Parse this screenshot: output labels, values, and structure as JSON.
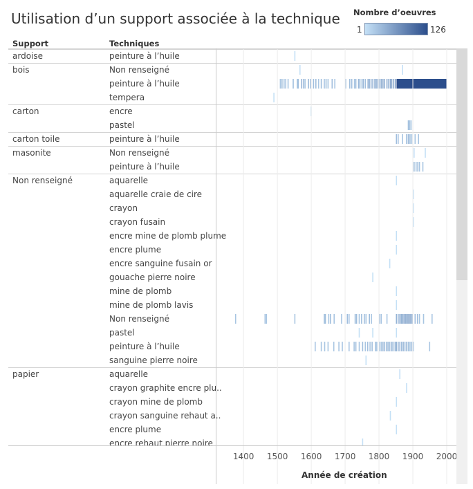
{
  "title": "Utilisation d’un support associée à la technique",
  "legend": {
    "title": "Nombre d’oeuvres",
    "min": "1",
    "max": "126",
    "color_low": "#c4e0f6",
    "color_high": "#2c4e8c"
  },
  "headers": {
    "support": "Support",
    "techniques": "Techniques"
  },
  "chart_data": {
    "type": "heatmap",
    "xlabel": "Année de création",
    "xlim": [
      1320,
      2010
    ],
    "xticks": [
      1400,
      1500,
      1600,
      1700,
      1800,
      1900,
      2000
    ],
    "grid": true,
    "groups": [
      {
        "support": "ardoise",
        "rows": [
          {
            "technique": "peinture à l’huile",
            "marks": [
              [
                1550,
                1
              ]
            ]
          }
        ]
      },
      {
        "support": "bois",
        "rows": [
          {
            "technique": "Non renseigné",
            "marks": [
              [
                1565,
                1
              ],
              [
                1868,
                1
              ]
            ]
          },
          {
            "technique": "peinture à l’huile",
            "marks": [
              [
                1507,
                2
              ],
              [
                1512,
                3
              ],
              [
                1518,
                2
              ],
              [
                1523,
                2
              ],
              [
                1530,
                2
              ],
              [
                1545,
                3
              ],
              [
                1557,
                2
              ],
              [
                1560,
                3
              ],
              [
                1570,
                4
              ],
              [
                1575,
                3
              ],
              [
                1580,
                2
              ],
              [
                1590,
                4
              ],
              [
                1596,
                3
              ],
              [
                1605,
                3
              ],
              [
                1612,
                3
              ],
              [
                1620,
                2
              ],
              [
                1628,
                3
              ],
              [
                1637,
                2
              ],
              [
                1642,
                3
              ],
              [
                1648,
                2
              ],
              [
                1660,
                3
              ],
              [
                1668,
                2
              ],
              [
                1700,
                2
              ],
              [
                1712,
                3
              ],
              [
                1718,
                3
              ],
              [
                1726,
                2
              ],
              [
                1730,
                3
              ],
              [
                1738,
                4
              ],
              [
                1742,
                3
              ],
              [
                1748,
                2
              ],
              [
                1752,
                4
              ],
              [
                1758,
                3
              ],
              [
                1766,
                5
              ],
              [
                1770,
                4
              ],
              [
                1775,
                6
              ],
              [
                1780,
                5
              ],
              [
                1786,
                4
              ],
              [
                1790,
                6
              ],
              [
                1795,
                5
              ],
              [
                1800,
                6
              ],
              [
                1805,
                7
              ],
              [
                1810,
                8
              ],
              [
                1815,
                6
              ],
              [
                1822,
                8
              ],
              [
                1827,
                7
              ],
              [
                1832,
                9
              ],
              [
                1836,
                8
              ],
              [
                1842,
                10
              ],
              [
                1847,
                12
              ],
              [
                1852,
                126
              ],
              [
                1860,
                126
              ],
              [
                1880,
                126
              ],
              [
                1900,
                126
              ],
              [
                1920,
                126
              ],
              [
                1940,
                126
              ],
              [
                1960,
                126
              ],
              [
                1975,
                126
              ]
            ]
          },
          {
            "technique": "tempera",
            "marks": [
              [
                1488,
                1
              ]
            ]
          }
        ]
      },
      {
        "support": "carton",
        "rows": [
          {
            "technique": "encre",
            "marks": [
              [
                1598,
                1
              ]
            ]
          },
          {
            "technique": "pastel",
            "marks": [
              [
                1885,
                3
              ],
              [
                1889,
                2
              ],
              [
                1893,
                2
              ]
            ]
          }
        ]
      },
      {
        "support": "carton toile",
        "rows": [
          {
            "technique": "peinture à l’huile",
            "marks": [
              [
                1850,
                3
              ],
              [
                1855,
                2
              ],
              [
                1868,
                2
              ],
              [
                1880,
                3
              ],
              [
                1885,
                4
              ],
              [
                1890,
                3
              ],
              [
                1895,
                2
              ],
              [
                1905,
                2
              ],
              [
                1915,
                2
              ]
            ]
          }
        ]
      },
      {
        "support": "masonite",
        "rows": [
          {
            "technique": "Non renseigné",
            "marks": [
              [
                1902,
                1
              ],
              [
                1935,
                1
              ]
            ]
          },
          {
            "technique": "peinture à l’huile",
            "marks": [
              [
                1902,
                3
              ],
              [
                1908,
                2
              ],
              [
                1913,
                3
              ],
              [
                1918,
                2
              ],
              [
                1928,
                2
              ]
            ]
          }
        ]
      },
      {
        "support": "Non renseigné",
        "rows": [
          {
            "technique": "aquarelle",
            "marks": [
              [
                1850,
                1
              ]
            ]
          },
          {
            "technique": "aquarelle craie de cire",
            "marks": [
              [
                1900,
                1
              ]
            ]
          },
          {
            "technique": "crayon",
            "marks": [
              [
                1900,
                1
              ]
            ]
          },
          {
            "technique": "crayon fusain",
            "marks": [
              [
                1900,
                1
              ]
            ]
          },
          {
            "technique": "encre mine de plomb plume",
            "marks": [
              [
                1850,
                1
              ]
            ]
          },
          {
            "technique": "encre plume",
            "marks": [
              [
                1850,
                1
              ]
            ]
          },
          {
            "technique": "encre sanguine fusain or",
            "marks": [
              [
                1830,
                1
              ]
            ]
          },
          {
            "technique": "gouache pierre noire",
            "marks": [
              [
                1780,
                1
              ]
            ]
          },
          {
            "technique": "mine de plomb",
            "marks": [
              [
                1850,
                1
              ]
            ]
          },
          {
            "technique": "mine de plomb lavis",
            "marks": [
              [
                1850,
                1
              ]
            ]
          },
          {
            "technique": "Non renseigné",
            "marks": [
              [
                1375,
                2
              ],
              [
                1462,
                2
              ],
              [
                1466,
                2
              ],
              [
                1550,
                2
              ],
              [
                1637,
                3
              ],
              [
                1640,
                3
              ],
              [
                1650,
                2
              ],
              [
                1655,
                3
              ],
              [
                1666,
                2
              ],
              [
                1688,
                2
              ],
              [
                1705,
                3
              ],
              [
                1710,
                2
              ],
              [
                1728,
                3
              ],
              [
                1732,
                3
              ],
              [
                1740,
                2
              ],
              [
                1747,
                3
              ],
              [
                1755,
                3
              ],
              [
                1760,
                2
              ],
              [
                1770,
                3
              ],
              [
                1776,
                2
              ],
              [
                1800,
                3
              ],
              [
                1805,
                2
              ],
              [
                1822,
                2
              ],
              [
                1850,
                5
              ],
              [
                1855,
                4
              ],
              [
                1860,
                6
              ],
              [
                1864,
                5
              ],
              [
                1868,
                7
              ],
              [
                1872,
                6
              ],
              [
                1876,
                8
              ],
              [
                1880,
                7
              ],
              [
                1884,
                9
              ],
              [
                1888,
                8
              ],
              [
                1892,
                6
              ],
              [
                1896,
                5
              ],
              [
                1905,
                3
              ],
              [
                1912,
                3
              ],
              [
                1918,
                2
              ],
              [
                1930,
                2
              ],
              [
                1955,
                2
              ]
            ]
          },
          {
            "technique": "pastel",
            "marks": [
              [
                1740,
                1
              ],
              [
                1780,
                1
              ],
              [
                1850,
                1
              ]
            ]
          },
          {
            "technique": "peinture à l’huile",
            "marks": [
              [
                1610,
                2
              ],
              [
                1628,
                2
              ],
              [
                1638,
                2
              ],
              [
                1648,
                2
              ],
              [
                1665,
                2
              ],
              [
                1680,
                2
              ],
              [
                1690,
                2
              ],
              [
                1710,
                2
              ],
              [
                1725,
                2
              ],
              [
                1730,
                3
              ],
              [
                1740,
                2
              ],
              [
                1750,
                3
              ],
              [
                1758,
                2
              ],
              [
                1765,
                3
              ],
              [
                1772,
                2
              ],
              [
                1778,
                3
              ],
              [
                1788,
                3
              ],
              [
                1792,
                2
              ],
              [
                1800,
                3
              ],
              [
                1805,
                2
              ],
              [
                1810,
                4
              ],
              [
                1815,
                3
              ],
              [
                1820,
                3
              ],
              [
                1825,
                4
              ],
              [
                1830,
                3
              ],
              [
                1836,
                4
              ],
              [
                1840,
                3
              ],
              [
                1846,
                4
              ],
              [
                1850,
                5
              ],
              [
                1855,
                4
              ],
              [
                1860,
                4
              ],
              [
                1865,
                3
              ],
              [
                1870,
                4
              ],
              [
                1875,
                3
              ],
              [
                1880,
                4
              ],
              [
                1885,
                3
              ],
              [
                1890,
                2
              ],
              [
                1895,
                3
              ],
              [
                1900,
                2
              ],
              [
                1948,
                2
              ]
            ]
          },
          {
            "technique": "sanguine pierre noire",
            "marks": [
              [
                1760,
                1
              ]
            ]
          }
        ]
      },
      {
        "support": "papier",
        "rows": [
          {
            "technique": "aquarelle",
            "marks": [
              [
                1860,
                1
              ]
            ]
          },
          {
            "technique": "crayon graphite encre plu..",
            "marks": [
              [
                1880,
                1
              ]
            ]
          },
          {
            "technique": "crayon mine de plomb",
            "marks": [
              [
                1850,
                1
              ]
            ]
          },
          {
            "technique": "crayon sanguine rehaut a..",
            "marks": [
              [
                1832,
                1
              ]
            ]
          },
          {
            "technique": "encre plume",
            "marks": [
              [
                1850,
                1
              ]
            ]
          },
          {
            "technique": "encre rehaut pierre noire",
            "marks": [
              [
                1750,
                1
              ]
            ]
          }
        ]
      }
    ]
  }
}
